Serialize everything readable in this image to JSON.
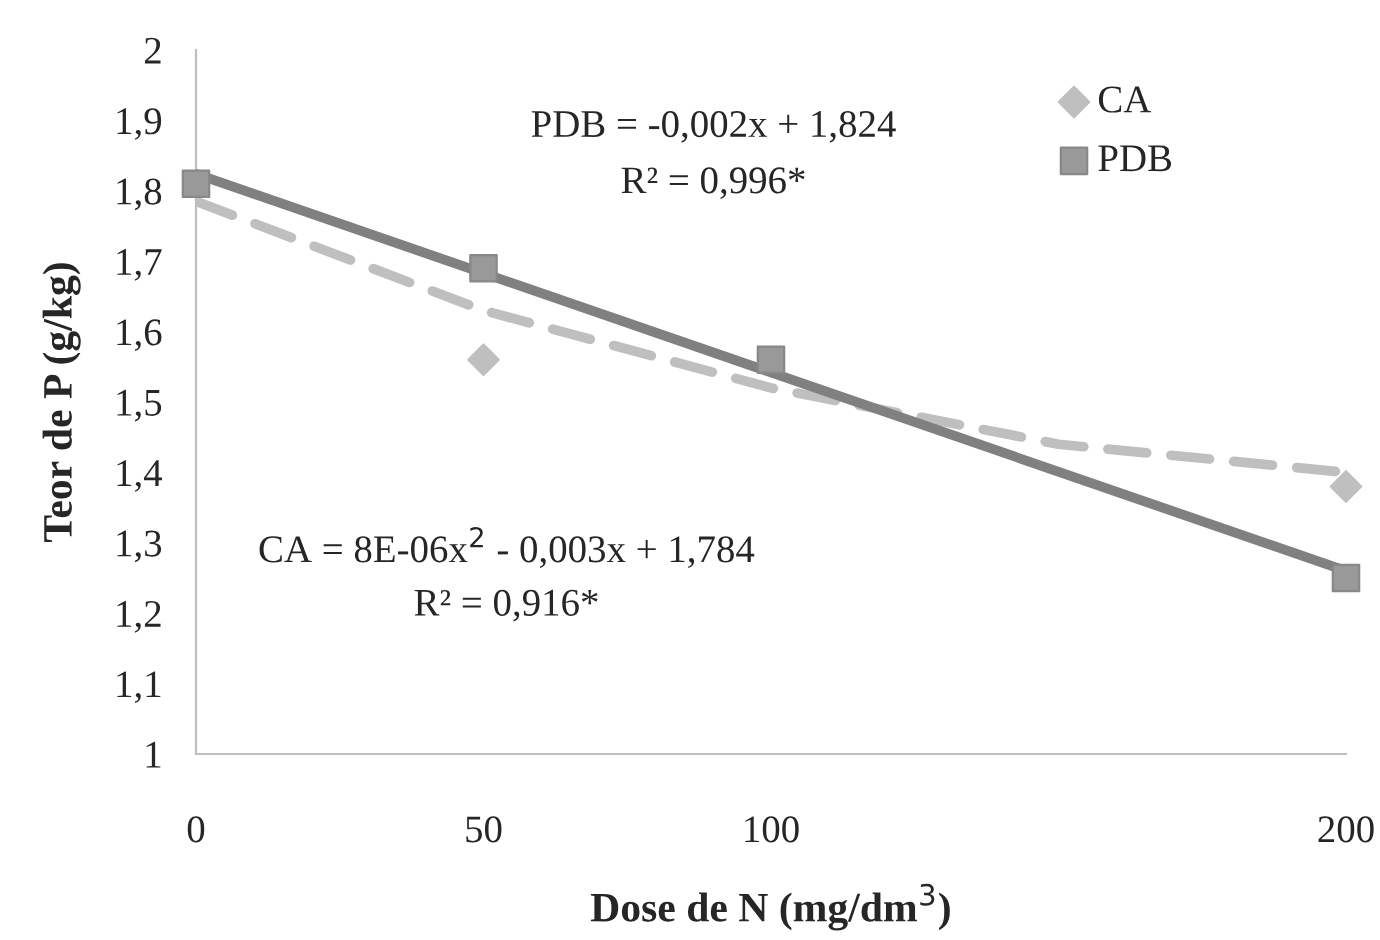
{
  "chart_data": {
    "type": "scatter",
    "xlabel": "Dose de N (mg/dm$^{3}$)",
    "ylabel": "Teor de P (g/kg)",
    "x": [
      0,
      50,
      100,
      200
    ],
    "series": [
      {
        "name": "CA",
        "color": "#bfbfbf",
        "marker": "diamond",
        "values": [
          null,
          1.56,
          null,
          1.38
        ]
      },
      {
        "name": "PDB",
        "color": "#999999",
        "marker": "square",
        "values": [
          1.81,
          1.69,
          1.56,
          1.25
        ]
      },
      {
        "type": "line",
        "color": "#bfbfbf",
        "line_style": "dashed",
        "marker": "none",
        "x": [
          0,
          50,
          100,
          150,
          200
        ],
        "values": [
          1.785,
          1.63,
          1.52,
          1.44,
          1.4
        ]
      },
      {
        "type": "line",
        "color": "#808080",
        "line_style": "solid",
        "marker": "none",
        "x": [
          0,
          200
        ],
        "values": [
          1.824,
          1.26
        ]
      }
    ],
    "xlim": [
      0,
      200
    ],
    "xticks": [
      0,
      50,
      100,
      200
    ],
    "ylim": [
      1,
      2
    ],
    "yticks": [
      1,
      {
        "value": 1.1,
        "label": "1,1"
      },
      {
        "value": 1.2,
        "label": "1,2"
      },
      {
        "value": 1.3,
        "label": "1,3"
      },
      {
        "value": 1.4,
        "label": "1,4"
      },
      {
        "value": 1.5,
        "label": "1,5"
      },
      {
        "value": 1.6,
        "label": "1,6"
      },
      {
        "value": 1.7,
        "label": "1,7"
      },
      {
        "value": 1.8,
        "label": "1,8"
      },
      {
        "value": 1.9,
        "label": "1,9"
      },
      2
    ],
    "annotations": [
      "PDB = -0,002x + 1,824",
      "R² = 0,996*",
      "CA = 8E-06x$^{2}$ - 0,003x + 1,784",
      "R² = 0,916*"
    ],
    "legend": "top right",
    "grid": false
  }
}
